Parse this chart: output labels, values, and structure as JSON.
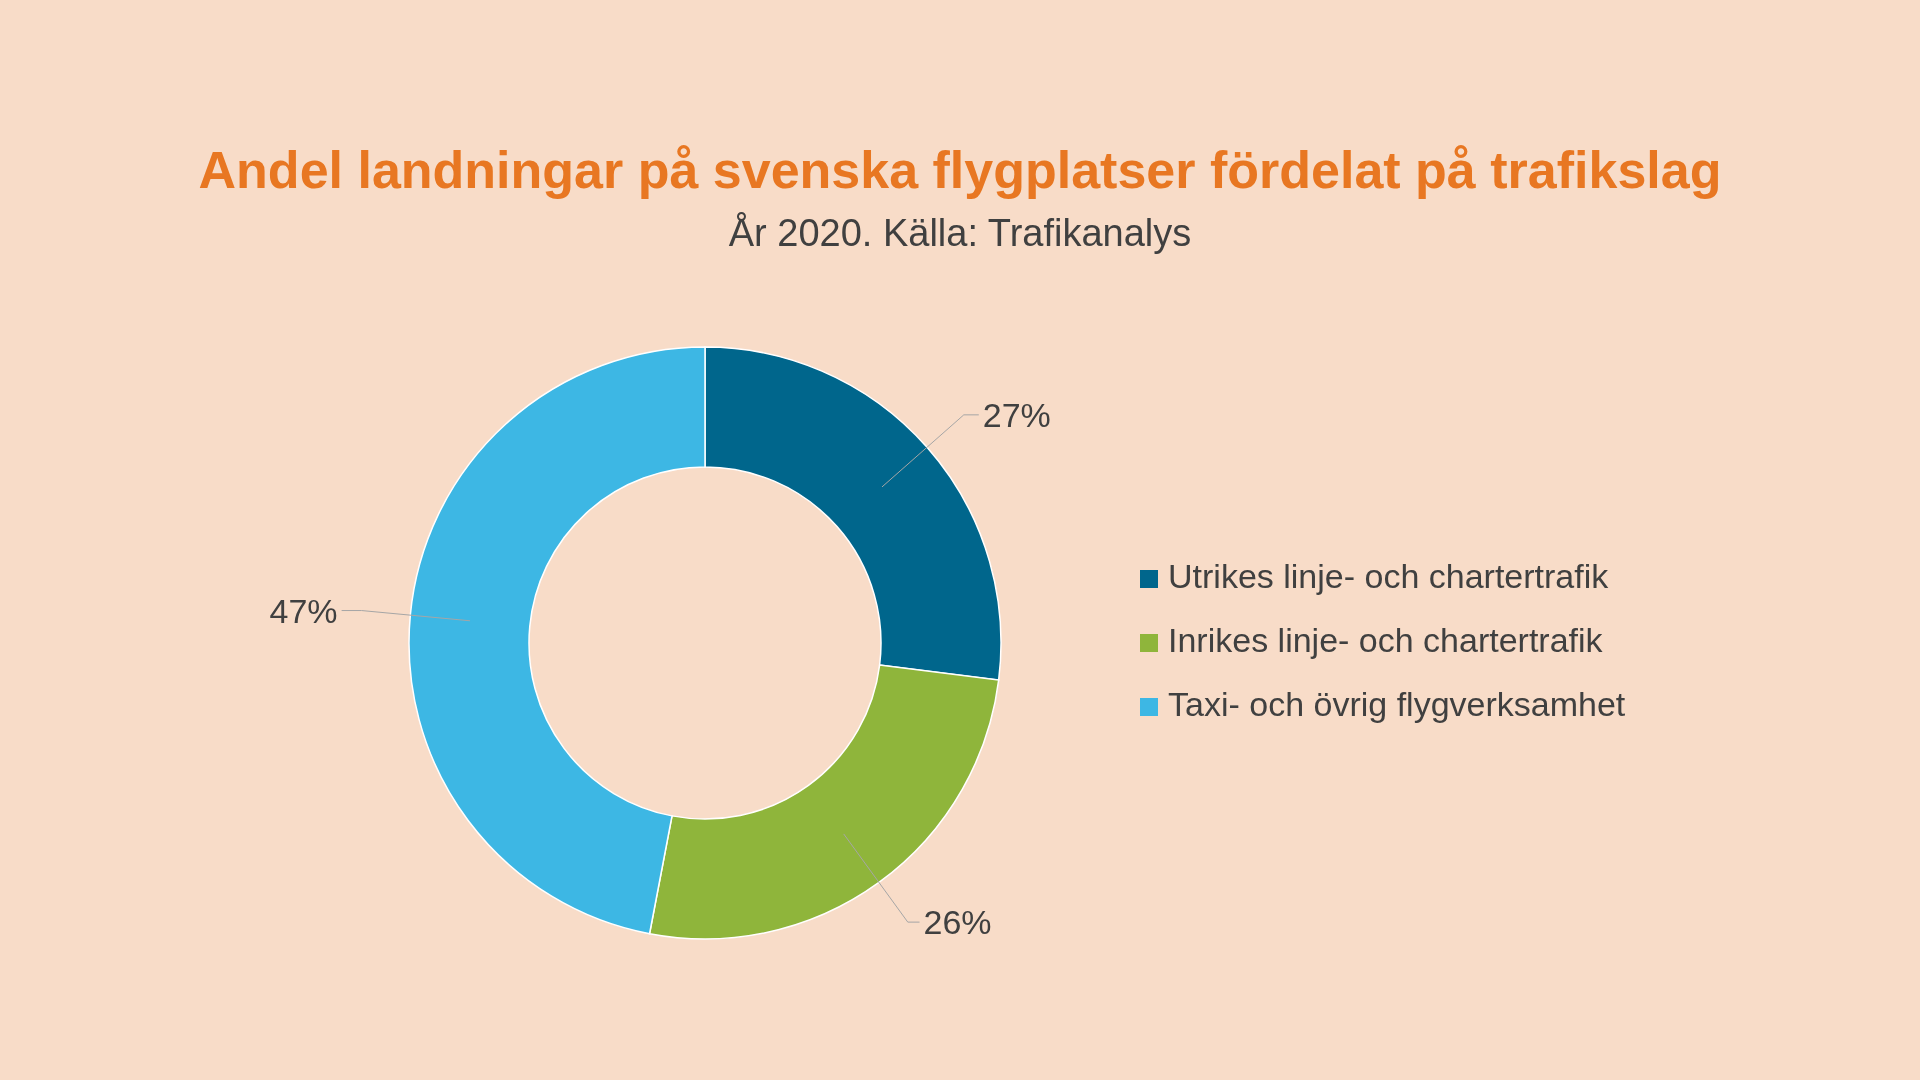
{
  "chart_data": {
    "type": "donut",
    "title": "Andel landningar på svenska flygplatser fördelat på trafikslag",
    "subtitle": "År 2020. Källa: Trafikanalys",
    "categories": [
      "Utrikes linje- och chartertrafik",
      "Inrikes linje- och chartertrafik",
      "Taxi- och övrig flygverksamhet"
    ],
    "values": [
      27,
      26,
      47
    ],
    "colors": [
      "#00668c",
      "#8fb53b",
      "#3db7e4"
    ],
    "value_labels": [
      "27%",
      "26%",
      "47%"
    ],
    "legend": "right"
  }
}
